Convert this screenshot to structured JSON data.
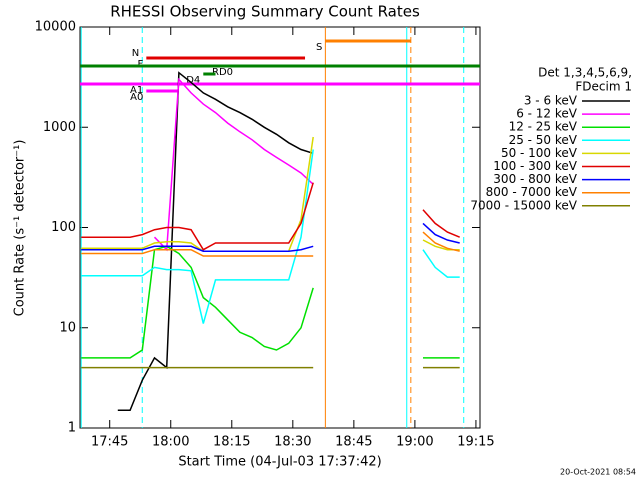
{
  "chart_data": {
    "type": "line",
    "title": "RHESSI Observing Summary Count Rates",
    "xlabel": "Start Time (04-Jul-03 17:37:42)",
    "ylabel": "Count Rate (s⁻¹ detector⁻¹)",
    "log_y": true,
    "xlim": [
      "17:37:42",
      "19:16"
    ],
    "ylim": [
      1,
      10000
    ],
    "xticks": [
      "17:45",
      "18:00",
      "18:15",
      "18:30",
      "18:45",
      "19:00",
      "19:15"
    ],
    "yticks": [
      1,
      10,
      100,
      1000,
      10000
    ],
    "legend_header": [
      "Det 1,3,4,5,6,9,",
      "FDecim 1"
    ],
    "timestamp": "20-Oct-2021 08:54",
    "x": [
      "17:38",
      "17:41",
      "17:44",
      "17:47",
      "17:50",
      "17:53",
      "17:56",
      "17:59",
      "18:02",
      "18:05",
      "18:08",
      "18:11",
      "18:14",
      "18:17",
      "18:20",
      "18:23",
      "18:26",
      "18:29",
      "18:32",
      "18:35",
      "18:38",
      "18:41",
      "18:44",
      "18:47",
      "18:50",
      "18:53",
      "18:56",
      "18:59",
      "19:02",
      "19:05",
      "19:08",
      "19:11",
      "19:14"
    ],
    "series": [
      {
        "name": "3 - 6 keV",
        "color": "#000000",
        "values": [
          null,
          null,
          null,
          1.5,
          1.5,
          3,
          5,
          4,
          3500,
          2800,
          2200,
          1900,
          1600,
          1400,
          1200,
          1000,
          850,
          700,
          600,
          550,
          null,
          null,
          null,
          null,
          null,
          null,
          null,
          null,
          null,
          null,
          null,
          null,
          null
        ]
      },
      {
        "name": "6 - 12 keV",
        "color": "#ff00ff",
        "values": [
          null,
          null,
          null,
          null,
          null,
          null,
          80,
          60,
          3000,
          2200,
          1700,
          1400,
          1100,
          900,
          750,
          600,
          500,
          420,
          350,
          270,
          null,
          null,
          null,
          null,
          null,
          null,
          null,
          null,
          null,
          null,
          null,
          null,
          null
        ]
      },
      {
        "name": "12 - 25 keV",
        "color": "#00e000",
        "values": [
          5,
          5,
          5,
          5,
          5,
          6,
          60,
          65,
          55,
          40,
          20,
          16,
          12,
          9,
          8,
          6.5,
          6,
          7,
          10,
          25,
          null,
          null,
          null,
          null,
          null,
          null,
          null,
          null,
          5,
          5,
          5,
          5,
          null
        ]
      },
      {
        "name": "25 - 50 keV",
        "color": "#00ffff",
        "values": [
          33,
          33,
          33,
          33,
          33,
          33,
          40,
          38,
          38,
          37,
          11,
          30,
          30,
          30,
          30,
          30,
          30,
          30,
          80,
          600,
          null,
          null,
          null,
          null,
          null,
          null,
          null,
          null,
          60,
          40,
          32,
          32,
          null
        ]
      },
      {
        "name": "50 - 100 keV",
        "color": "#d8d800",
        "values": [
          62,
          62,
          62,
          62,
          62,
          62,
          70,
          72,
          72,
          70,
          58,
          58,
          58,
          58,
          58,
          58,
          58,
          58,
          120,
          800,
          null,
          null,
          null,
          null,
          null,
          null,
          null,
          null,
          75,
          65,
          60,
          60,
          null
        ]
      },
      {
        "name": "100 - 300 keV",
        "color": "#e00000",
        "values": [
          80,
          80,
          80,
          80,
          80,
          85,
          95,
          100,
          100,
          95,
          60,
          70,
          70,
          70,
          70,
          70,
          70,
          70,
          110,
          280,
          null,
          null,
          null,
          null,
          null,
          null,
          null,
          null,
          150,
          110,
          90,
          80,
          null
        ]
      },
      {
        "name": "300 - 800 keV",
        "color": "#0000ff",
        "values": [
          60,
          60,
          60,
          60,
          60,
          60,
          65,
          65,
          65,
          65,
          58,
          58,
          58,
          58,
          58,
          58,
          58,
          58,
          60,
          65,
          null,
          null,
          null,
          null,
          null,
          null,
          null,
          null,
          110,
          85,
          75,
          70,
          null
        ]
      },
      {
        "name": "800 - 7000 keV",
        "color": "#ff8000",
        "values": [
          55,
          55,
          55,
          55,
          55,
          55,
          60,
          60,
          60,
          60,
          52,
          52,
          52,
          52,
          52,
          52,
          52,
          52,
          52,
          52,
          null,
          null,
          null,
          null,
          null,
          null,
          null,
          null,
          90,
          70,
          62,
          58,
          null
        ]
      },
      {
        "name": "7000 - 15000 keV",
        "color": "#808000",
        "values": [
          4,
          4,
          4,
          4,
          4,
          4,
          4,
          4,
          4,
          4,
          4,
          4,
          4,
          4,
          4,
          4,
          4,
          4,
          4,
          4,
          null,
          null,
          null,
          null,
          null,
          null,
          null,
          null,
          4,
          4,
          4,
          4,
          null
        ]
      }
    ],
    "flags": [
      {
        "label": "S",
        "color": "#ff8000",
        "start": "18:38",
        "end": "18:59"
      },
      {
        "label": "N",
        "color": "#00ffff",
        "start": "17:53",
        "end": "17:53"
      },
      {
        "label": "F",
        "color": "#e00000",
        "start": "17:54",
        "end": "18:33"
      },
      {
        "label": "RD0",
        "color": "#008000",
        "start": "17:37:42",
        "end": "19:16"
      },
      {
        "label": "D4",
        "color": "#008000",
        "start": "18:08",
        "end": "18:11"
      },
      {
        "label": "A1",
        "color": "#ff00ff",
        "start": "17:37:42",
        "end": "19:16"
      },
      {
        "label": "A0",
        "color": "#ff00ff",
        "start": "17:54",
        "end": "18:02"
      }
    ],
    "time_markers": [
      {
        "x": "17:38",
        "color": "#00ffff",
        "dashed": false
      },
      {
        "x": "17:53",
        "color": "#00ffff",
        "dashed": true
      },
      {
        "x": "18:38",
        "color": "#ff8000",
        "dashed": false
      },
      {
        "x": "18:58",
        "color": "#00ffff",
        "dashed": false
      },
      {
        "x": "18:59",
        "color": "#ff8000",
        "dashed": true
      },
      {
        "x": "19:12",
        "color": "#00ffff",
        "dashed": true
      }
    ]
  }
}
